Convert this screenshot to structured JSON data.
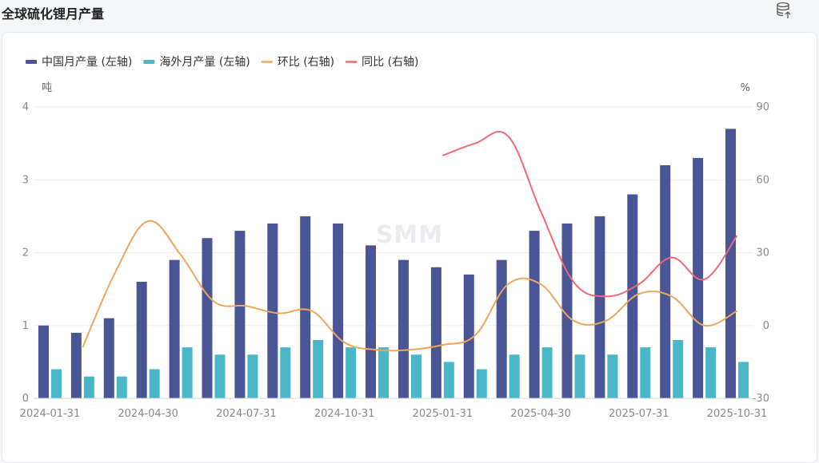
{
  "title": "全球硫化锂月产量",
  "export_icon": "database-export-icon",
  "colors": {
    "china": "#4a5596",
    "overseas": "#4ab7c9",
    "mom": "#f0a559",
    "yoy": "#f06874"
  },
  "chart_data": {
    "type": "bar",
    "watermark": "SMM",
    "legend": [
      {
        "key": "china",
        "label": "中国月产量 (左轴)"
      },
      {
        "key": "overseas",
        "label": "海外月产量 (左轴)"
      },
      {
        "key": "mom",
        "label": "环比 (右轴)"
      },
      {
        "key": "yoy",
        "label": "同比 (右轴)"
      }
    ],
    "yleft": {
      "unit": "吨",
      "min": 0,
      "max": 4,
      "ticks": [
        "0",
        "1",
        "2",
        "3",
        "4"
      ]
    },
    "yright": {
      "unit": "%",
      "min": -30,
      "max": 90,
      "ticks": [
        "-30",
        "0",
        "30",
        "60",
        "90"
      ]
    },
    "x_tick_labels": [
      "2024-01-31",
      "2024-04-30",
      "2024-07-31",
      "2024-10-31",
      "2025-01-31",
      "2025-04-30",
      "2025-07-31",
      "2025-10-31"
    ],
    "categories": [
      "2024-01-31",
      "2024-02-29",
      "2024-03-31",
      "2024-04-30",
      "2024-05-31",
      "2024-06-30",
      "2024-07-31",
      "2024-08-31",
      "2024-09-30",
      "2024-10-31",
      "2024-11-30",
      "2024-12-31",
      "2025-01-31",
      "2025-02-28",
      "2025-03-31",
      "2025-04-30",
      "2025-05-31",
      "2025-06-30",
      "2025-07-31",
      "2025-08-31",
      "2025-09-30",
      "2025-10-31"
    ],
    "series": [
      {
        "key": "china",
        "name": "中国月产量",
        "axis": "left",
        "kind": "bar",
        "values": [
          1.0,
          0.9,
          1.1,
          1.6,
          1.9,
          2.2,
          2.3,
          2.4,
          2.5,
          2.4,
          2.1,
          1.9,
          1.8,
          1.7,
          1.9,
          2.3,
          2.4,
          2.5,
          2.8,
          3.2,
          3.3,
          3.7
        ]
      },
      {
        "key": "overseas",
        "name": "海外月产量",
        "axis": "left",
        "kind": "bar",
        "values": [
          0.4,
          0.3,
          0.3,
          0.4,
          0.7,
          0.6,
          0.6,
          0.7,
          0.8,
          0.7,
          0.7,
          0.6,
          0.5,
          0.4,
          0.6,
          0.7,
          0.6,
          0.6,
          0.7,
          0.8,
          0.7,
          0.5
        ]
      },
      {
        "key": "mom",
        "name": "环比",
        "axis": "right",
        "kind": "line",
        "values": [
          null,
          -9,
          22,
          43,
          29,
          10,
          8,
          5,
          6,
          -7,
          -10,
          -10,
          -8,
          -4,
          17,
          17,
          2,
          2,
          13,
          12,
          0,
          6
        ]
      },
      {
        "key": "yoy",
        "name": "同比",
        "axis": "right",
        "kind": "line",
        "values": [
          null,
          null,
          null,
          null,
          null,
          null,
          null,
          null,
          null,
          null,
          null,
          null,
          70,
          75,
          78,
          47,
          18,
          12,
          17,
          28,
          19,
          37
        ]
      }
    ]
  }
}
